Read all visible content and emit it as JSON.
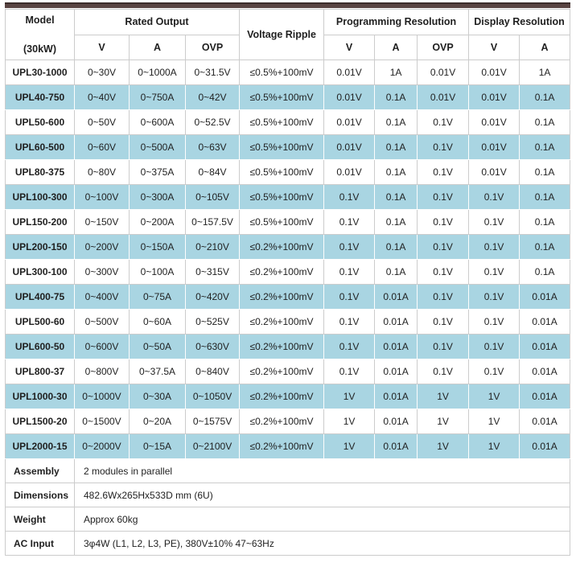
{
  "colors": {
    "row_alt": "#a9d5e2",
    "accent_bar": "#594442",
    "accent_bar_top": "#3b2d2b",
    "border": "#cccccc",
    "text": "#1f1f1f"
  },
  "table": {
    "header": {
      "model_title": "Model",
      "model_subtitle": "(30kW)",
      "rated_output": "Rated Output",
      "voltage_ripple": "Voltage Ripple",
      "programming_resolution": "Programming Resolution",
      "display_resolution": "Display Resolution",
      "rated_sub": [
        "V",
        "A",
        "OVP"
      ],
      "programming_sub": [
        "V",
        "A",
        "OVP"
      ],
      "display_sub": [
        "V",
        "A"
      ]
    },
    "rows": [
      [
        "UPL30-1000",
        "0~30V",
        "0~1000A",
        "0~31.5V",
        "≤0.5%+100mV",
        "0.01V",
        "1A",
        "0.01V",
        "0.01V",
        "1A"
      ],
      [
        "UPL40-750",
        "0~40V",
        "0~750A",
        "0~42V",
        "≤0.5%+100mV",
        "0.01V",
        "0.1A",
        "0.01V",
        "0.01V",
        "0.1A"
      ],
      [
        "UPL50-600",
        "0~50V",
        "0~600A",
        "0~52.5V",
        "≤0.5%+100mV",
        "0.01V",
        "0.1A",
        "0.1V",
        "0.01V",
        "0.1A"
      ],
      [
        "UPL60-500",
        "0~60V",
        "0~500A",
        "0~63V",
        "≤0.5%+100mV",
        "0.01V",
        "0.1A",
        "0.1V",
        "0.01V",
        "0.1A"
      ],
      [
        "UPL80-375",
        "0~80V",
        "0~375A",
        "0~84V",
        "≤0.5%+100mV",
        "0.01V",
        "0.1A",
        "0.1V",
        "0.01V",
        "0.1A"
      ],
      [
        "UPL100-300",
        "0~100V",
        "0~300A",
        "0~105V",
        "≤0.5%+100mV",
        "0.1V",
        "0.1A",
        "0.1V",
        "0.1V",
        "0.1A"
      ],
      [
        "UPL150-200",
        "0~150V",
        "0~200A",
        "0~157.5V",
        "≤0.5%+100mV",
        "0.1V",
        "0.1A",
        "0.1V",
        "0.1V",
        "0.1A"
      ],
      [
        "UPL200-150",
        "0~200V",
        "0~150A",
        "0~210V",
        "≤0.2%+100mV",
        "0.1V",
        "0.1A",
        "0.1V",
        "0.1V",
        "0.1A"
      ],
      [
        "UPL300-100",
        "0~300V",
        "0~100A",
        "0~315V",
        "≤0.2%+100mV",
        "0.1V",
        "0.1A",
        "0.1V",
        "0.1V",
        "0.1A"
      ],
      [
        "UPL400-75",
        "0~400V",
        "0~75A",
        "0~420V",
        "≤0.2%+100mV",
        "0.1V",
        "0.01A",
        "0.1V",
        "0.1V",
        "0.01A"
      ],
      [
        "UPL500-60",
        "0~500V",
        "0~60A",
        "0~525V",
        "≤0.2%+100mV",
        "0.1V",
        "0.01A",
        "0.1V",
        "0.1V",
        "0.01A"
      ],
      [
        "UPL600-50",
        "0~600V",
        "0~50A",
        "0~630V",
        "≤0.2%+100mV",
        "0.1V",
        "0.01A",
        "0.1V",
        "0.1V",
        "0.01A"
      ],
      [
        "UPL800-37",
        "0~800V",
        "0~37.5A",
        "0~840V",
        "≤0.2%+100mV",
        "0.1V",
        "0.01A",
        "0.1V",
        "0.1V",
        "0.01A"
      ],
      [
        "UPL1000-30",
        "0~1000V",
        "0~30A",
        "0~1050V",
        "≤0.2%+100mV",
        "1V",
        "0.01A",
        "1V",
        "1V",
        "0.01A"
      ],
      [
        "UPL1500-20",
        "0~1500V",
        "0~20A",
        "0~1575V",
        "≤0.2%+100mV",
        "1V",
        "0.01A",
        "1V",
        "1V",
        "0.01A"
      ],
      [
        "UPL2000-15",
        "0~2000V",
        "0~15A",
        "0~2100V",
        "≤0.2%+100mV",
        "1V",
        "0.01A",
        "1V",
        "1V",
        "0.01A"
      ]
    ],
    "footer_rows": [
      {
        "label": "Assembly",
        "value": "2 modules in parallel"
      },
      {
        "label": "Dimensions",
        "value": "482.6Wx265Hx533D mm (6U)"
      },
      {
        "label": "Weight",
        "value": "Approx 60kg"
      },
      {
        "label": "AC Input",
        "value": "3φ4W (L1, L2, L3, PE), 380V±10% 47~63Hz"
      }
    ]
  }
}
